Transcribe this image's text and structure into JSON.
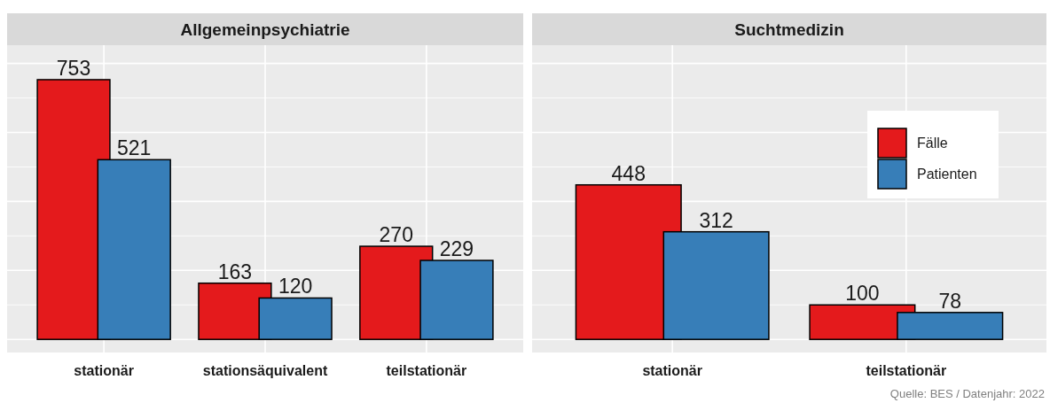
{
  "chart_data": [
    {
      "type": "bar",
      "title": "Allgemeinpsychiatrie",
      "categories": [
        "stationär",
        "stationsäquivalent",
        "teilstationär"
      ],
      "series": [
        {
          "color": "#e41a1c",
          "values": [
            753,
            163,
            270
          ]
        },
        {
          "color": "#377eb8",
          "values": [
            521,
            120,
            229
          ]
        }
      ],
      "ylim": [
        -38,
        853
      ],
      "yticks": [
        0,
        100,
        200,
        300,
        400,
        500,
        600,
        700,
        800
      ],
      "tick_labels": "x",
      "grid": true,
      "data_labels": true,
      "legend": false
    },
    {
      "type": "bar",
      "title": "Suchtmedizin",
      "categories": [
        "stationär",
        "teilstationär"
      ],
      "series": [
        {
          "name": "Fälle",
          "color": "#e41a1c",
          "values": [
            448,
            100
          ]
        },
        {
          "name": "Patienten",
          "color": "#377eb8",
          "values": [
            312,
            78
          ]
        }
      ],
      "ylim": [
        -38,
        853
      ],
      "yticks": [
        0,
        100,
        200,
        300,
        400,
        500,
        600,
        700,
        800
      ],
      "tick_labels": "x",
      "grid": true,
      "data_labels": true,
      "legend": "right",
      "annotations": [
        "Quelle: BES / Datenjahr: 2022"
      ]
    }
  ]
}
